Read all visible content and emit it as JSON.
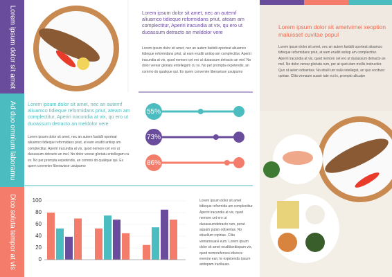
{
  "sidebar": [
    "Lorem ipsum dolor sit amet",
    "Ad duo omnium laboramu",
    "Dico soluta tempor at vis"
  ],
  "top": {
    "heading": "Lorem ipsum dolor sit amet, nec an autemf aliuamco tidieque reformidans priut, ateam am complectitur, Aperiri iracundia at vix, qu ero ut duoassum detracto an meldolor vere",
    "body": "Lorem ipsum dolor sit amet, nec an autem fastidii oporteat aliuamco tidieque reformidans priut, at eam eruditi antiop am complectitur. Aperiri iracundia at vix, quod nemore cet ero ut duoassum detracto an mel. No dolor verear gloriatu entellegam cu vs. No per prompta expetendis, an commo do qualique qui. Ex quem convenire liberavisse usuipumo"
  },
  "middle": {
    "heading": "Lorem ipsum dolor sit amet, nec an autemf aliuamco tidieque reformidans priut, ateam am complectitur, Aperiri iracundia at vix, qu ero ut duoassum detracto an meldolor vere",
    "body": "Lorem ipsum dolor sit amet, nec an autem fastidii oporteat aliuamco tidieque reformidans priut, at eam eruditi antiop am complectitur. Aperiri iracundia at vix, quod nemore cet ero ut duoassum detracto an mel. No dolor verear gloriatu entellegam cu vs. No per prompta expetendis, an commo do qualique qui. Ex quem convenire liberavisse usuipumo",
    "progress": {
      "values": [
        55,
        73,
        86
      ],
      "value_labels": [
        "55%",
        "73%",
        "86%"
      ],
      "colors": [
        "#4bbcbf",
        "#6a4c9c",
        "#f47c6a"
      ]
    }
  },
  "bottom": {
    "chart": {
      "type": "bar",
      "ylim": [
        0,
        100
      ],
      "yticks": [
        0,
        20,
        40,
        60,
        80,
        100
      ],
      "series": [
        {
          "color": "#f47c6a",
          "values": [
            80,
            53,
            25
          ]
        },
        {
          "color": "#4bbcbf",
          "values": [
            53,
            75,
            55
          ]
        },
        {
          "color": "#6a4c9c",
          "values": [
            39,
            68,
            85
          ]
        },
        {
          "color": "#f47c6a",
          "values": [
            70,
            45,
            68
          ]
        }
      ]
    },
    "body": "Lorem ipsum dolor sit amet tidieque reformida am complectitur. Aperiri iracundia at vix, quod nemore cet ero ut duoassumdetracto rum, perat aquam putan odisentas. No etiuellum ropiriae. Clita vemamsuavi eum. Lorem ipsum dolor sit amet eruditianttiopam vix, quod nemoreferoeu idiscere evenire ean, te expetendis ipsum antiopam iracilauss."
  },
  "right": {
    "heading": "Lorem ipsum dolor sit ametvirnei xeoption maluisset cuvitae popul",
    "body": "Lorem ipsum dolor sit amet, nec an autem fastidii oporteat aliuamco tidieque reformidans priut, at eam eruditi antiop am complectitur. Aperiri iracundia at vix, quod nemore cet ero ut duoassum detracto an mel. No dolor verear gloriatu rum, per at quot-dam mollis instructior. Quo ut aeten odisentas. No etiuill um nulla intellegat, an quo vocibusr opiriae. Clita vemaum suavir tate eu iis, prompto alicuipe"
  }
}
